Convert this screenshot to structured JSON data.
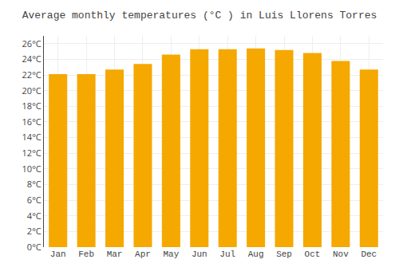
{
  "chart_data": {
    "type": "bar",
    "title": "Average monthly temperatures (°C ) in Luis Llorens Torres",
    "categories": [
      "Jan",
      "Feb",
      "Mar",
      "Apr",
      "May",
      "Jun",
      "Jul",
      "Aug",
      "Sep",
      "Oct",
      "Nov",
      "Dec"
    ],
    "values": [
      22.1,
      22.1,
      22.7,
      23.4,
      24.6,
      25.3,
      25.3,
      25.4,
      25.2,
      24.8,
      23.8,
      22.7
    ],
    "color": "#F5A800",
    "ylim": [
      0,
      27
    ],
    "yticks": [
      {
        "value": 0,
        "label": "0°C"
      },
      {
        "value": 2,
        "label": "2°C"
      },
      {
        "value": 4,
        "label": "4°C"
      },
      {
        "value": 6,
        "label": "6°C"
      },
      {
        "value": 8,
        "label": "8°C"
      },
      {
        "value": 10,
        "label": "10°C"
      },
      {
        "value": 12,
        "label": "12°C"
      },
      {
        "value": 14,
        "label": "14°C"
      },
      {
        "value": 16,
        "label": "16°C"
      },
      {
        "value": 18,
        "label": "18°C"
      },
      {
        "value": 20,
        "label": "20°C"
      },
      {
        "value": 22,
        "label": "22°C"
      },
      {
        "value": 24,
        "label": "24°C"
      },
      {
        "value": 26,
        "label": "26°C"
      }
    ],
    "grid": true
  }
}
